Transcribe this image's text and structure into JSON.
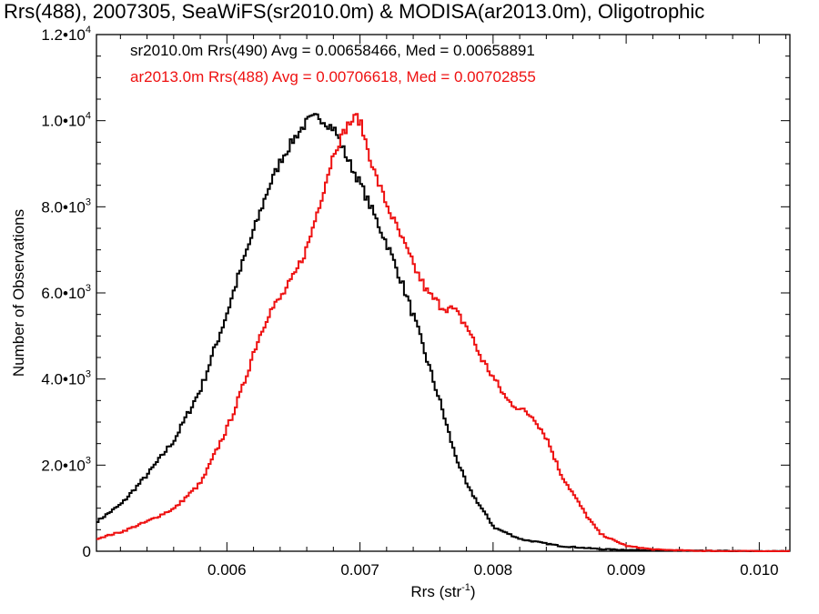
{
  "chart_data": {
    "type": "line",
    "title": "Rrs(488), 2007305, SeaWiFS(sr2010.0m) & MODISA(ar2013.0m), Oligotrophic",
    "xlabel": "Rrs (str",
    "xlabel_sup": "-1",
    "xlabel_suffix": ")",
    "ylabel": "Number of Observations",
    "xlim": [
      0.00502,
      0.01023
    ],
    "ylim": [
      0,
      12000
    ],
    "grid": false,
    "x_ticks": [
      {
        "value": 0.006,
        "label": "0.006"
      },
      {
        "value": 0.007,
        "label": "0.007"
      },
      {
        "value": 0.008,
        "label": "0.008"
      },
      {
        "value": 0.009,
        "label": "0.009"
      },
      {
        "value": 0.01,
        "label": "0.010"
      }
    ],
    "y_ticks": [
      {
        "value": 0,
        "mant": "0",
        "exp": ""
      },
      {
        "value": 2000,
        "mant": "2.0•10",
        "exp": "3"
      },
      {
        "value": 4000,
        "mant": "4.0•10",
        "exp": "3"
      },
      {
        "value": 6000,
        "mant": "6.0•10",
        "exp": "3"
      },
      {
        "value": 8000,
        "mant": "8.0•10",
        "exp": "3"
      },
      {
        "value": 10000,
        "mant": "1.0•10",
        "exp": "4"
      },
      {
        "value": 12000,
        "mant": "1.2•10",
        "exp": "4"
      }
    ],
    "legend_placement": "top-left",
    "series": [
      {
        "name": "sr2010.0m Rrs(490) Avg = 0.00658466, Med = 0.00658891",
        "color": "#000000",
        "x": [
          0.00502,
          0.0052,
          0.0054,
          0.0056,
          0.0058,
          0.0059,
          0.006,
          0.0061,
          0.0062,
          0.0063,
          0.0064,
          0.0065,
          0.0066,
          0.00668,
          0.0068,
          0.0069,
          0.007,
          0.0071,
          0.0072,
          0.0073,
          0.0074,
          0.0075,
          0.0076,
          0.0077,
          0.0078,
          0.008,
          0.0082,
          0.0085,
          0.0088,
          0.009,
          0.0095,
          0.01,
          0.01023
        ],
        "y": [
          700,
          1100,
          1800,
          2600,
          3800,
          4700,
          5600,
          6600,
          7500,
          8400,
          9100,
          9600,
          10000,
          10100,
          9800,
          9100,
          8500,
          7800,
          7100,
          6300,
          5400,
          4400,
          3400,
          2300,
          1500,
          550,
          280,
          120,
          50,
          30,
          10,
          0,
          0
        ]
      },
      {
        "name": "ar2013.0m Rrs(488) Avg = 0.00706618, Med = 0.00702855",
        "color": "#ee1111",
        "x": [
          0.00502,
          0.0052,
          0.0054,
          0.0056,
          0.0058,
          0.006,
          0.0061,
          0.0062,
          0.0063,
          0.0064,
          0.0065,
          0.0066,
          0.0067,
          0.0068,
          0.0069,
          0.00697,
          0.007,
          0.0071,
          0.0072,
          0.0073,
          0.0074,
          0.0075,
          0.0076,
          0.0077,
          0.0078,
          0.0079,
          0.008,
          0.0081,
          0.0082,
          0.0083,
          0.0084,
          0.0085,
          0.0086,
          0.0087,
          0.0088,
          0.0089,
          0.009,
          0.0092,
          0.0095,
          0.01,
          0.01023
        ],
        "y": [
          300,
          450,
          700,
          1000,
          1600,
          2900,
          3700,
          4700,
          5500,
          5900,
          6400,
          7100,
          8200,
          9300,
          9900,
          10100,
          9900,
          8800,
          8000,
          7300,
          6600,
          6000,
          5700,
          5600,
          5200,
          4500,
          4000,
          3500,
          3300,
          3100,
          2600,
          1800,
          1300,
          800,
          400,
          250,
          120,
          40,
          10,
          0,
          0
        ]
      }
    ]
  }
}
